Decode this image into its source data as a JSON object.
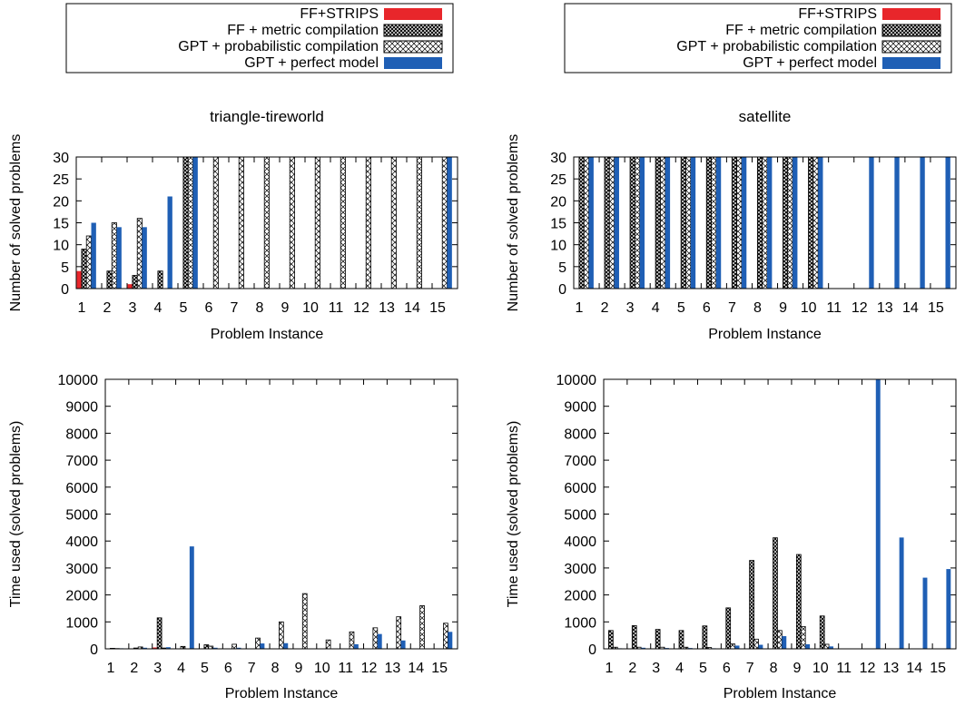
{
  "colors": {
    "ff_strips": "#e8262b",
    "gpt_perfect": "#1f5fb5",
    "axis": "#000000"
  },
  "legend_entries": [
    {
      "label": "FF+STRIPS",
      "pattern": "solid-red"
    },
    {
      "label": "FF + metric compilation",
      "pattern": "dense-crosshatch"
    },
    {
      "label": "GPT + probabilistic compilation",
      "pattern": "light-crosshatch"
    },
    {
      "label": "GPT + perfect model",
      "pattern": "solid-blue"
    }
  ],
  "chart_data": [
    {
      "type": "bar",
      "title": "triangle-tireworld",
      "xlabel": "Problem Instance",
      "ylabel": "Number of solved problems",
      "ylim": [
        0,
        30
      ],
      "yticks": [
        0,
        5,
        10,
        15,
        20,
        25,
        30
      ],
      "categories": [
        "1",
        "2",
        "3",
        "4",
        "5",
        "6",
        "7",
        "8",
        "9",
        "10",
        "11",
        "12",
        "13",
        "14",
        "15"
      ],
      "series": [
        {
          "name": "FF+STRIPS",
          "values": [
            4,
            0,
            1,
            0,
            0,
            0,
            0,
            0,
            0,
            0,
            0,
            0,
            0,
            0,
            0
          ]
        },
        {
          "name": "FF + metric compilation",
          "values": [
            9,
            4,
            3,
            4,
            30,
            0,
            0,
            0,
            0,
            0,
            0,
            0,
            0,
            0,
            0
          ]
        },
        {
          "name": "GPT + probabilistic compilation",
          "values": [
            12,
            15,
            16,
            0,
            30,
            30,
            30,
            30,
            30,
            30,
            30,
            30,
            30,
            30,
            30
          ]
        },
        {
          "name": "GPT + perfect model",
          "values": [
            15,
            14,
            14,
            21,
            30,
            0,
            0,
            0,
            0,
            0,
            0,
            0,
            0,
            0,
            30
          ]
        }
      ]
    },
    {
      "type": "bar",
      "title": "satellite",
      "xlabel": "Problem Instance",
      "ylabel": "Number of solved problems",
      "ylim": [
        0,
        30
      ],
      "yticks": [
        0,
        5,
        10,
        15,
        20,
        25,
        30
      ],
      "categories": [
        "1",
        "2",
        "3",
        "4",
        "5",
        "6",
        "7",
        "8",
        "9",
        "10",
        "11",
        "12",
        "13",
        "14",
        "15"
      ],
      "series": [
        {
          "name": "FF+STRIPS",
          "values": [
            0,
            0,
            0,
            0,
            0,
            0,
            0,
            0,
            0,
            0,
            0,
            0,
            0,
            0,
            0
          ]
        },
        {
          "name": "FF + metric compilation",
          "values": [
            30,
            30,
            30,
            30,
            30,
            30,
            30,
            30,
            30,
            30,
            0,
            0,
            0,
            0,
            0
          ]
        },
        {
          "name": "GPT + probabilistic compilation",
          "values": [
            30,
            30,
            30,
            30,
            30,
            30,
            30,
            30,
            30,
            30,
            0,
            0,
            0,
            0,
            0
          ]
        },
        {
          "name": "GPT + perfect model",
          "values": [
            30,
            30,
            30,
            30,
            30,
            30,
            30,
            30,
            30,
            30,
            0,
            30,
            30,
            30,
            30
          ]
        }
      ]
    },
    {
      "type": "bar",
      "title": "",
      "xlabel": "Problem Instance",
      "ylabel": "Time used (solved problems)",
      "ylim": [
        0,
        10000
      ],
      "yticks": [
        0,
        1000,
        2000,
        3000,
        4000,
        5000,
        6000,
        7000,
        8000,
        9000,
        10000
      ],
      "categories": [
        "1",
        "2",
        "3",
        "4",
        "5",
        "6",
        "7",
        "8",
        "9",
        "10",
        "11",
        "12",
        "13",
        "14",
        "15"
      ],
      "series": [
        {
          "name": "FF+STRIPS",
          "values": [
            10,
            0,
            50,
            0,
            0,
            0,
            0,
            0,
            0,
            0,
            0,
            0,
            0,
            0,
            0
          ]
        },
        {
          "name": "FF + metric compilation",
          "values": [
            20,
            30,
            1150,
            90,
            150,
            0,
            0,
            0,
            0,
            0,
            0,
            0,
            0,
            0,
            0
          ]
        },
        {
          "name": "GPT + probabilistic compilation",
          "values": [
            10,
            70,
            30,
            0,
            100,
            170,
            400,
            1000,
            2050,
            330,
            630,
            780,
            1190,
            1600,
            950
          ]
        },
        {
          "name": "GPT + perfect model",
          "values": [
            20,
            40,
            60,
            3800,
            40,
            40,
            200,
            210,
            0,
            0,
            170,
            550,
            310,
            0,
            630
          ]
        }
      ]
    },
    {
      "type": "bar",
      "title": "",
      "xlabel": "Problem Instance",
      "ylabel": "Time used (solved problems)",
      "ylim": [
        0,
        10000
      ],
      "yticks": [
        0,
        1000,
        2000,
        3000,
        4000,
        5000,
        6000,
        7000,
        8000,
        9000,
        10000
      ],
      "categories": [
        "1",
        "2",
        "3",
        "4",
        "5",
        "6",
        "7",
        "8",
        "9",
        "10",
        "11",
        "12",
        "13",
        "14",
        "15"
      ],
      "series": [
        {
          "name": "FF+STRIPS",
          "values": [
            0,
            0,
            0,
            0,
            0,
            0,
            0,
            0,
            0,
            0,
            0,
            0,
            0,
            0,
            0
          ]
        },
        {
          "name": "FF + metric compilation",
          "values": [
            680,
            860,
            720,
            680,
            850,
            1520,
            3280,
            4120,
            3500,
            1220,
            0,
            0,
            0,
            0,
            0
          ]
        },
        {
          "name": "GPT + probabilistic compilation",
          "values": [
            60,
            60,
            60,
            60,
            50,
            180,
            360,
            680,
            830,
            170,
            0,
            0,
            0,
            0,
            0
          ]
        },
        {
          "name": "GPT + perfect model",
          "values": [
            20,
            40,
            30,
            30,
            20,
            120,
            150,
            470,
            170,
            90,
            0,
            10000,
            4130,
            2640,
            2960
          ]
        }
      ]
    }
  ]
}
